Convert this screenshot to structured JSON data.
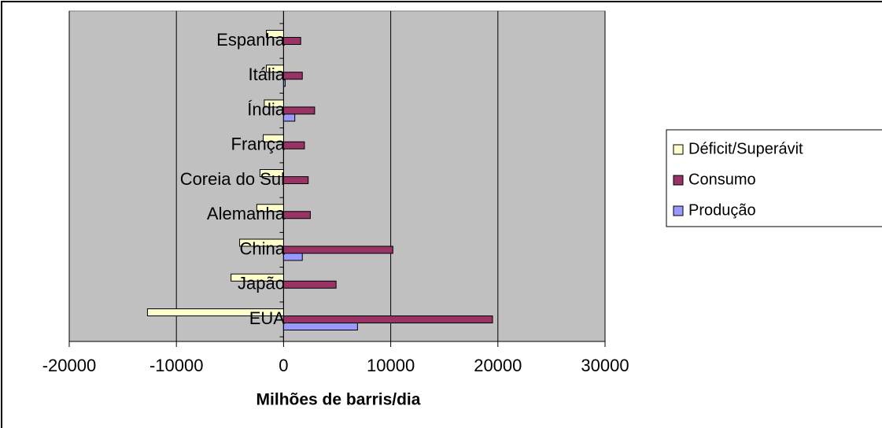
{
  "chart_data": {
    "type": "bar",
    "orientation": "horizontal",
    "categories": [
      "Espanha",
      "Itália",
      "Índia",
      "França",
      "Coreia do Sul",
      "Alemanha",
      "China",
      "Japão",
      "EUA"
    ],
    "series": [
      {
        "name": "Déficit/Superávit",
        "color": "#FFFFCC",
        "values": [
          -1600,
          -1600,
          -1800,
          -1900,
          -2200,
          -2500,
          -4100,
          -4900,
          -12700
        ]
      },
      {
        "name": "Consumo",
        "color": "#993366",
        "values": [
          1600,
          1750,
          2900,
          1950,
          2300,
          2500,
          10200,
          4900,
          19500
        ]
      },
      {
        "name": "Produção",
        "color": "#9999FF",
        "values": [
          0,
          150,
          1050,
          0,
          0,
          0,
          1750,
          0,
          6900
        ]
      }
    ],
    "x_label": "Milhões de barris/dia",
    "xlim": [
      -20000,
      30000
    ],
    "xticks": [
      -20000,
      -10000,
      0,
      10000,
      20000,
      30000
    ],
    "grid": true,
    "legend": "right",
    "background": "#C0C0C0"
  }
}
